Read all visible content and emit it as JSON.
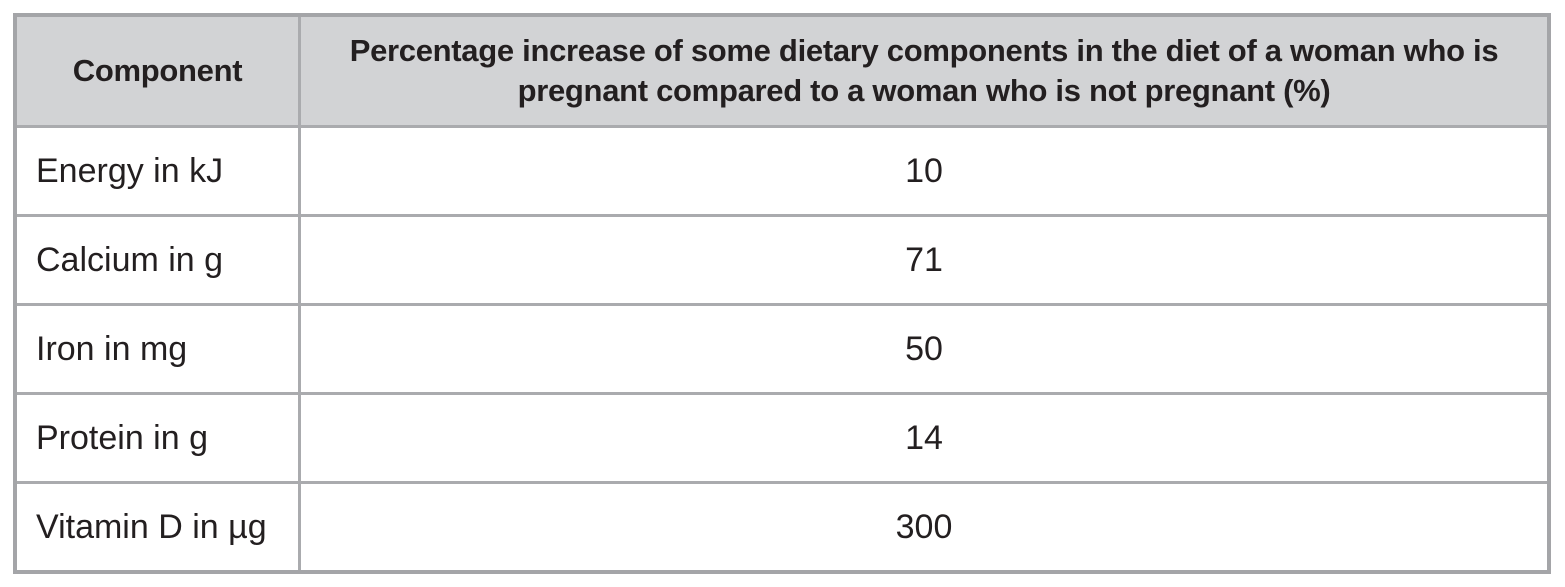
{
  "table": {
    "headers": {
      "component": "Component",
      "percentage": "Percentage increase of some dietary components in the diet of a woman who is pregnant compared to a woman who is not pregnant (%)"
    },
    "rows": [
      {
        "component": "Energy in kJ",
        "value": "10"
      },
      {
        "component": "Calcium in g",
        "value": "71"
      },
      {
        "component": "Iron in mg",
        "value": "50"
      },
      {
        "component": "Protein in g",
        "value": "14"
      },
      {
        "component": "Vitamin D in µg",
        "value": "300"
      }
    ],
    "colors": {
      "header_bg": "#d2d3d5",
      "grid_border": "#a4a5a8",
      "text": "#231f20",
      "body_bg": "#ffffff"
    }
  },
  "chart_data": {
    "type": "table",
    "title": "",
    "columns": [
      "Component",
      "Percentage increase of some dietary components in the diet of a woman who is pregnant compared to a woman who is not pregnant (%)"
    ],
    "categories": [
      "Energy in kJ",
      "Calcium in g",
      "Iron in mg",
      "Protein in g",
      "Vitamin D in µg"
    ],
    "values": [
      10,
      71,
      50,
      14,
      300
    ],
    "layout": {
      "header_row_shaded": true,
      "value_alignment": "center",
      "label_alignment": "left"
    }
  }
}
